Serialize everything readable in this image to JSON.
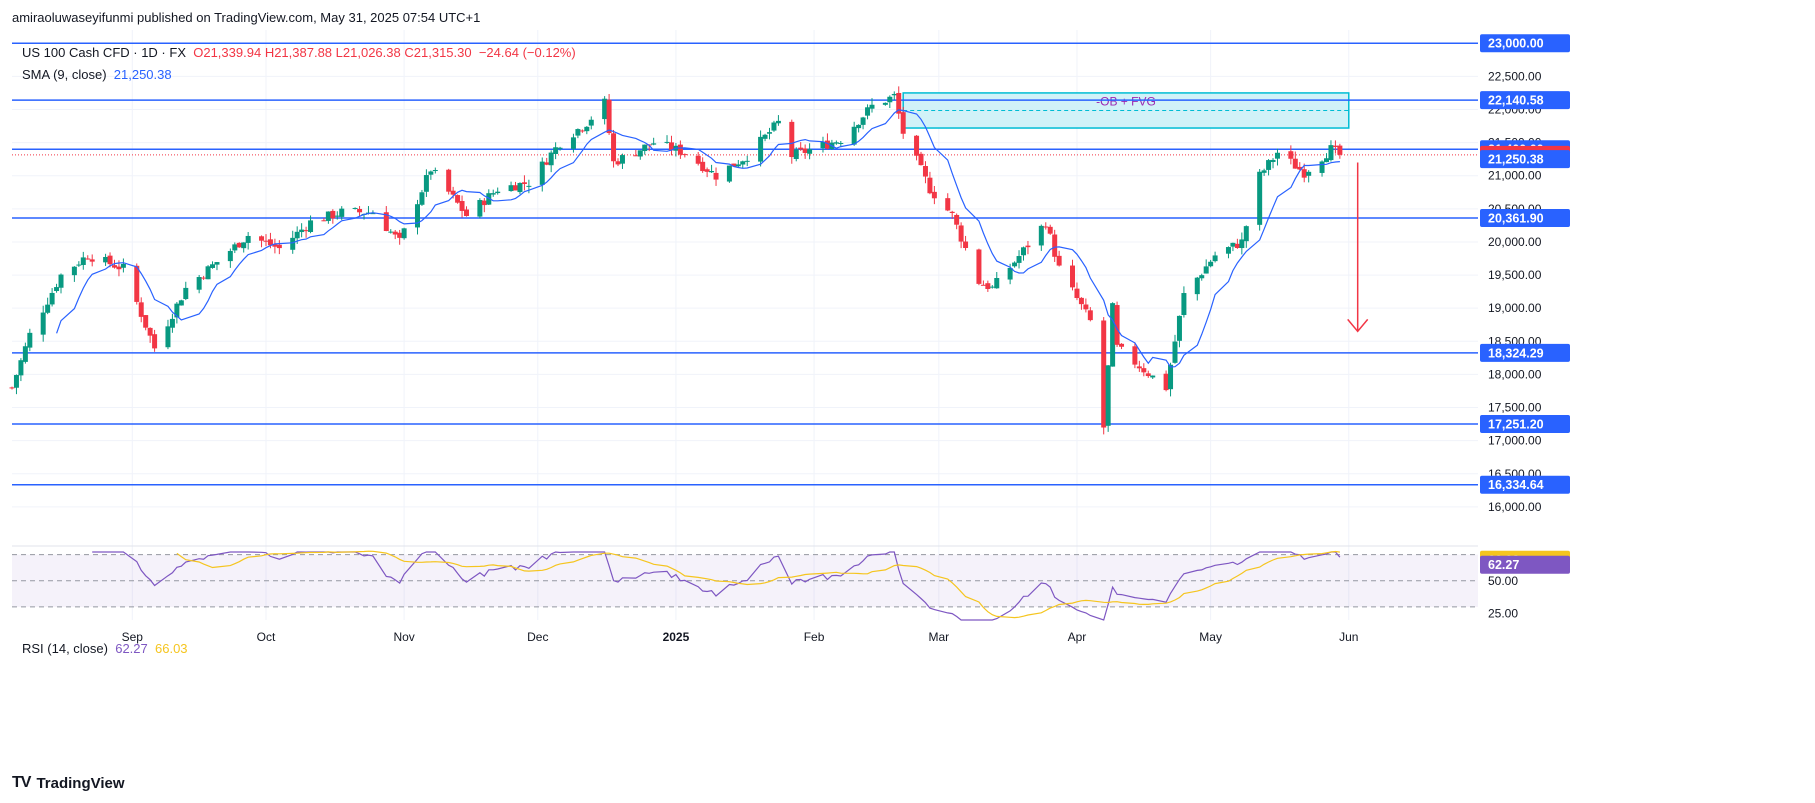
{
  "header": {
    "publisher": "amiraoluwaseyifunmi published on TradingView.com, May 31, 2025 07:54 UTC+1"
  },
  "legend": {
    "symbol": "US 100 Cash CFD · 1D · FX",
    "open": "O21,339.94",
    "high": "H21,387.88",
    "low": "L21,026.38",
    "close": "C21,315.30",
    "change": "−24.64 (−0.12%)",
    "sma_label": "SMA (9, close)",
    "sma_value": "21,250.38",
    "rsi_label": "RSI (14, close)",
    "rsi_value": "62.27",
    "rsi_ma_value": "66.03"
  },
  "annotation": {
    "zone_label": "-OB + FVG"
  },
  "brand": {
    "name": "TradingView",
    "logo": "TV"
  },
  "colors": {
    "bull": "#089981",
    "bear": "#f23645",
    "level": "#2962ff",
    "sma": "#2962ff",
    "rsi": "#7e57c2",
    "rsi_ma": "#f5c51f",
    "zone_fill": "#c9f0f7",
    "zone_stroke": "#00bcd4",
    "arrow": "#f23645"
  },
  "chart_data": [
    {
      "type": "candlestick",
      "title": "US 100 Cash CFD · 1D · FX",
      "ylim": [
        15500,
        23200
      ],
      "x_range": [
        "2024-08-05",
        "2025-06-30"
      ],
      "x_ticks": [
        {
          "date": "2024-09-01",
          "label": "Sep"
        },
        {
          "date": "2024-10-01",
          "label": "Oct"
        },
        {
          "date": "2024-11-01",
          "label": "Nov"
        },
        {
          "date": "2024-12-01",
          "label": "Dec"
        },
        {
          "date": "2025-01-01",
          "label": "2025"
        },
        {
          "date": "2025-02-01",
          "label": "Feb"
        },
        {
          "date": "2025-03-01",
          "label": "Mar"
        },
        {
          "date": "2025-04-01",
          "label": "Apr"
        },
        {
          "date": "2025-05-01",
          "label": "May"
        },
        {
          "date": "2025-06-01",
          "label": "Jun"
        }
      ],
      "y_ticks": [
        16000,
        16500,
        17000,
        17500,
        18000,
        18500,
        19000,
        19500,
        20000,
        20500,
        21000,
        21500,
        22000,
        22500
      ],
      "y_tick_labels": [
        "16,000.00",
        "16,500.00",
        "17,000.00",
        "17,500.00",
        "18,000.00",
        "18,500.00",
        "19,000.00",
        "19,500.00",
        "20,000.00",
        "20,500.00",
        "21,000.00",
        "21,500.00",
        "22,000.00",
        "22,500.00"
      ],
      "horizontal_levels": [
        {
          "value": 23000,
          "label": "23,000.00"
        },
        {
          "value": 22140.58,
          "label": "22,140.58"
        },
        {
          "value": 21400,
          "label": "21,400.00"
        },
        {
          "value": 20361.9,
          "label": "20,361.90"
        },
        {
          "value": 18324.29,
          "label": "18,324.29"
        },
        {
          "value": 17251.2,
          "label": "17,251.20"
        },
        {
          "value": 16334.64,
          "label": "16,334.64"
        }
      ],
      "price_tags": [
        {
          "value": 21315.3,
          "label": "21,315.30",
          "kind": "last"
        },
        {
          "value": 21250.38,
          "label": "21,250.38",
          "kind": "sma"
        }
      ],
      "zone": {
        "start": "2025-02-21",
        "end": "2025-06-01",
        "top": 22250,
        "bottom": 21720,
        "mid": 21985
      },
      "arrow": {
        "date": "2025-06-03",
        "from": 21200,
        "to": 18650
      },
      "close_path": [
        [
          "2024-08-05",
          17800
        ],
        [
          "2024-08-09",
          18600
        ],
        [
          "2024-08-16",
          19500
        ],
        [
          "2024-08-22",
          19800
        ],
        [
          "2024-08-30",
          19600
        ],
        [
          "2024-09-06",
          18400
        ],
        [
          "2024-09-13",
          19300
        ],
        [
          "2024-09-20",
          19700
        ],
        [
          "2024-09-27",
          20100
        ],
        [
          "2024-10-04",
          19900
        ],
        [
          "2024-10-11",
          20300
        ],
        [
          "2024-10-18",
          20450
        ],
        [
          "2024-10-25",
          20450
        ],
        [
          "2024-10-31",
          20000
        ],
        [
          "2024-11-07",
          21100
        ],
        [
          "2024-11-15",
          20400
        ],
        [
          "2024-11-22",
          20800
        ],
        [
          "2024-11-29",
          20900
        ],
        [
          "2024-12-06",
          21500
        ],
        [
          "2024-12-12",
          21800
        ],
        [
          "2024-12-16",
          22100
        ],
        [
          "2024-12-18",
          21200
        ],
        [
          "2024-12-27",
          21500
        ],
        [
          "2025-01-03",
          21350
        ],
        [
          "2025-01-10",
          21000
        ],
        [
          "2025-01-17",
          21300
        ],
        [
          "2025-01-24",
          21800
        ],
        [
          "2025-01-27",
          21300
        ],
        [
          "2025-02-07",
          21550
        ],
        [
          "2025-02-14",
          22050
        ],
        [
          "2025-02-19",
          22200
        ],
        [
          "2025-02-21",
          21650
        ],
        [
          "2025-02-27",
          20800
        ],
        [
          "2025-03-04",
          20400
        ],
        [
          "2025-03-10",
          19400
        ],
        [
          "2025-03-13",
          19300
        ],
        [
          "2025-03-18",
          19700
        ],
        [
          "2025-03-25",
          20300
        ],
        [
          "2025-03-28",
          19600
        ],
        [
          "2025-04-04",
          18800
        ],
        [
          "2025-04-07",
          17200
        ],
        [
          "2025-04-09",
          19000
        ],
        [
          "2025-04-10",
          18400
        ],
        [
          "2025-04-21",
          17800
        ],
        [
          "2025-04-25",
          19200
        ],
        [
          "2025-05-02",
          19800
        ],
        [
          "2025-05-08",
          20000
        ],
        [
          "2025-05-12",
          21000
        ],
        [
          "2025-05-16",
          21350
        ],
        [
          "2025-05-22",
          21050
        ],
        [
          "2025-05-28",
          21400
        ],
        [
          "2025-05-30",
          21315
        ]
      ],
      "last_close": 21315.3
    },
    {
      "type": "line",
      "title": "RSI (14, close)",
      "ylim": [
        20,
        72
      ],
      "y_ticks": [
        25,
        50
      ],
      "y_tick_labels": [
        "25.00",
        "50.00"
      ],
      "bands": {
        "upper": 70,
        "middle": 50,
        "lower": 30
      },
      "series": [
        {
          "name": "RSI",
          "last": 62.27,
          "last_label": "62.27"
        },
        {
          "name": "MA",
          "last": 66.03,
          "last_label": "66.03"
        }
      ]
    }
  ]
}
